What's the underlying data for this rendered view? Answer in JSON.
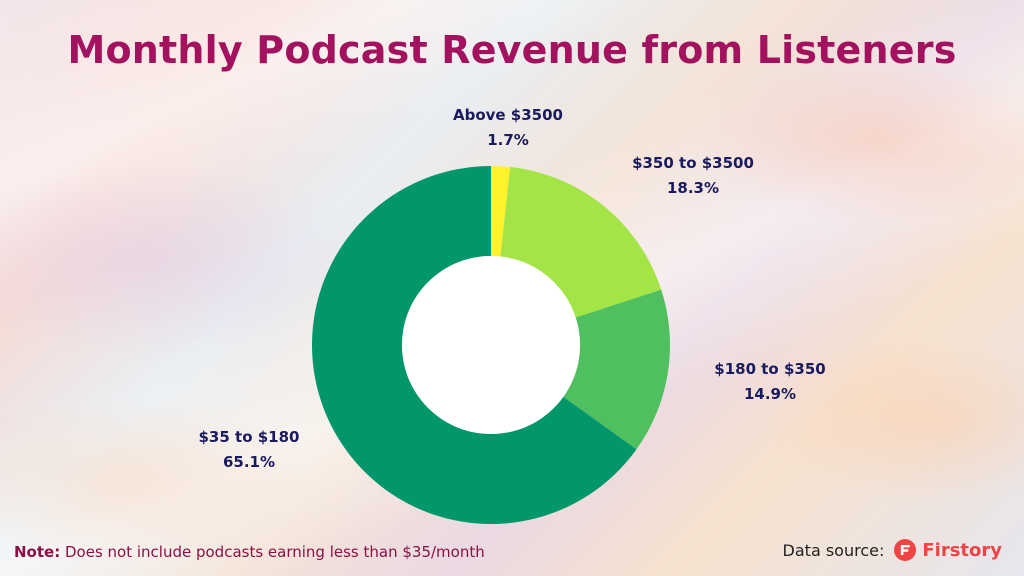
{
  "colors": {
    "title": "#a3125e",
    "label": "#1a1a5e",
    "note": "#8c1045",
    "body_text": "#222222",
    "brand": "#ef4444",
    "slices": [
      "#fff22a",
      "#a3e446",
      "#4fbf60",
      "#02966b"
    ]
  },
  "title": "Monthly Podcast Revenue from Listeners",
  "chart_data": {
    "type": "pie",
    "style": "donut",
    "categories": [
      "Above $3500",
      "$350 to $3500",
      "$180 to $350",
      "$35 to $180"
    ],
    "values": [
      1.7,
      18.3,
      14.9,
      65.1
    ],
    "value_labels": [
      "1.7%",
      "18.3%",
      "14.9%",
      "65.1%"
    ],
    "start": "top, clockwise",
    "legend": "none (labels placed outside slices)"
  },
  "note": {
    "key": "Note:",
    "text": "Does not include podcasts earning less than $35/month"
  },
  "source": {
    "label": "Data source:",
    "brand": "Firstory",
    "brand_icon": "firstory-logo-icon"
  }
}
